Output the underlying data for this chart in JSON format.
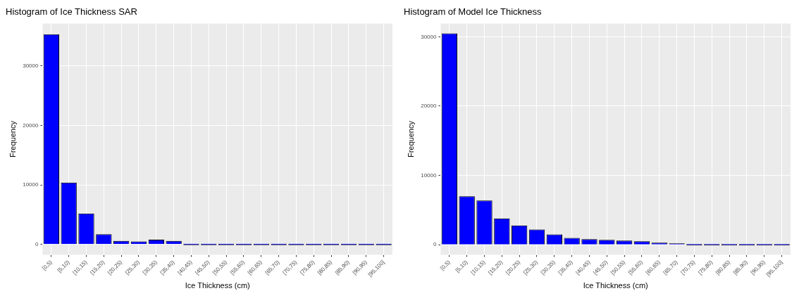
{
  "chart_data": [
    {
      "type": "bar",
      "title": "Histogram of Ice Thickness SAR",
      "xlabel": "Ice Thickness (cm)",
      "ylabel": "Frequency",
      "categories": [
        "[0,5)",
        "[5,10)",
        "[10,15)",
        "[15,20)",
        "[20,25)",
        "[25,30)",
        "[30,35)",
        "[35,40)",
        "[40,45)",
        "[45,50)",
        "[50,55)",
        "[55,60)",
        "[60,65)",
        "[65,70)",
        "[70,75)",
        "[75,80)",
        "[80,85)",
        "[85,90)",
        "[90,95)",
        "[95,100]"
      ],
      "values": [
        35300,
        10400,
        5200,
        1700,
        600,
        500,
        800,
        600,
        0,
        0,
        0,
        0,
        0,
        0,
        0,
        0,
        0,
        0,
        0,
        0
      ],
      "color": "#0000ff",
      "ylim": [
        -1750,
        37100
      ],
      "yticks": [
        0,
        10000,
        20000,
        30000
      ],
      "grid": true
    },
    {
      "type": "bar",
      "title": "Histogram of Model Ice Thickness",
      "xlabel": "Ice Thickness (cm)",
      "ylabel": "Frequency",
      "categories": [
        "[0,5)",
        "[5,10)",
        "[10,15)",
        "[15,20)",
        "[20,25)",
        "[25,30)",
        "[30,35)",
        "[35,40)",
        "[40,45)",
        "[45,50)",
        "[50,55)",
        "[55,60)",
        "[60,65)",
        "[65,70)",
        "[70,75)",
        "[75,80)",
        "[80,85)",
        "[85,90)",
        "[90,95)",
        "[95,100]"
      ],
      "values": [
        30500,
        7000,
        6400,
        3800,
        2800,
        2200,
        1500,
        1000,
        800,
        700,
        600,
        500,
        300,
        100,
        0,
        0,
        0,
        0,
        0,
        0
      ],
      "color": "#0000ff",
      "ylim": [
        -1450,
        31900
      ],
      "yticks": [
        0,
        10000,
        20000,
        30000
      ],
      "grid": true
    }
  ]
}
